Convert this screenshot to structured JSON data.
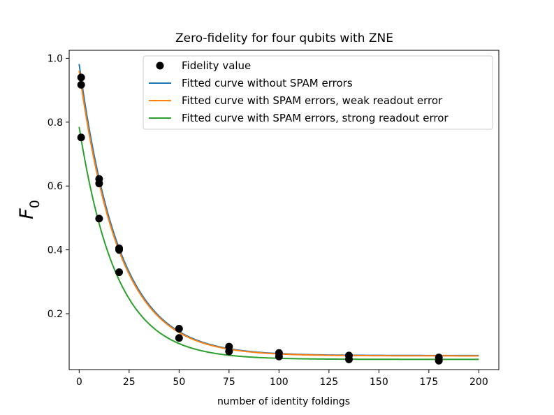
{
  "chart_data": {
    "type": "scatter",
    "title": "Zero-fidelity for four qubits with ZNE",
    "xlabel": "number of identity foldings",
    "ylabel": "F",
    "ylabel_subscript": "0",
    "xlim": [
      -5,
      210
    ],
    "ylim": [
      0.025,
      1.025
    ],
    "xticks": [
      0,
      25,
      50,
      75,
      100,
      125,
      150,
      175,
      200
    ],
    "yticks": [
      0.2,
      0.4,
      0.6,
      0.8,
      1.0
    ],
    "xtick_labels": [
      "0",
      "25",
      "50",
      "75",
      "100",
      "125",
      "150",
      "175",
      "200"
    ],
    "ytick_labels": [
      "0.2",
      "0.4",
      "0.6",
      "0.8",
      "1.0"
    ],
    "legend_position": "top-right",
    "scatter": {
      "name": "Fidelity value",
      "color": "#000000",
      "points": [
        {
          "x": 1,
          "y": 0.94
        },
        {
          "x": 1,
          "y": 0.917
        },
        {
          "x": 1,
          "y": 0.752
        },
        {
          "x": 10,
          "y": 0.622
        },
        {
          "x": 10,
          "y": 0.608
        },
        {
          "x": 10,
          "y": 0.498
        },
        {
          "x": 20,
          "y": 0.405
        },
        {
          "x": 20,
          "y": 0.4
        },
        {
          "x": 20,
          "y": 0.33
        },
        {
          "x": 50,
          "y": 0.153
        },
        {
          "x": 50,
          "y": 0.124
        },
        {
          "x": 75,
          "y": 0.097
        },
        {
          "x": 75,
          "y": 0.082
        },
        {
          "x": 100,
          "y": 0.077
        },
        {
          "x": 100,
          "y": 0.066
        },
        {
          "x": 135,
          "y": 0.069
        },
        {
          "x": 135,
          "y": 0.057
        },
        {
          "x": 180,
          "y": 0.063
        },
        {
          "x": 180,
          "y": 0.053
        }
      ]
    },
    "series": [
      {
        "name": "Fitted curve without SPAM errors",
        "color": "#1f77b4",
        "model": "exponential",
        "amplitude": 0.913,
        "decay_length": 20.0,
        "offset": 0.069,
        "x_range": [
          0,
          200
        ]
      },
      {
        "name": "Fitted curve with SPAM errors, weak readout error",
        "color": "#ff7f0e",
        "model": "exponential",
        "amplitude": 0.893,
        "decay_length": 20.0,
        "offset": 0.068,
        "x_range": [
          0,
          200
        ]
      },
      {
        "name": "Fitted curve with SPAM errors, strong readout error",
        "color": "#2ca02c",
        "model": "exponential",
        "amplitude": 0.728,
        "decay_length": 18.6,
        "offset": 0.057,
        "x_range": [
          0,
          200
        ]
      }
    ]
  }
}
